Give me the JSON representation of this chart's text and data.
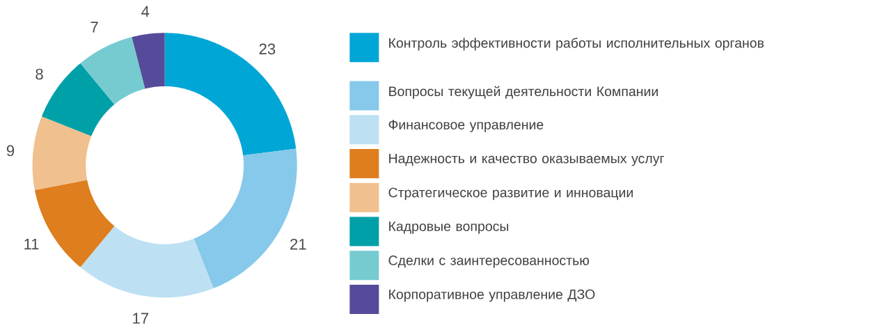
{
  "chart_data": {
    "type": "donut",
    "categories": [
      "Контроль эффективности работы исполнительных органов",
      "Вопросы текущей деятельности Компании",
      "Финансовое управление",
      "Надежность и качество оказываемых услуг",
      "Стратегическое развитие и инновации",
      "Кадровые вопросы",
      "Сделки с заинтересованностью",
      "Корпоративное управление ДЗО"
    ],
    "values": [
      23,
      21,
      17,
      11,
      9,
      8,
      7,
      4
    ],
    "colors": [
      "#00a6d6",
      "#86c9ea",
      "#bde0f2",
      "#df7e1e",
      "#f0c08e",
      "#00a0a8",
      "#76cbd0",
      "#554b9a"
    ],
    "data_labels": true,
    "legend": "right"
  }
}
